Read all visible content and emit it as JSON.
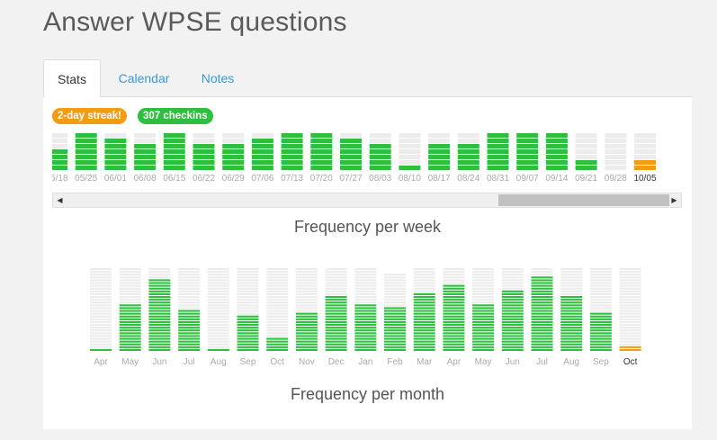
{
  "title": "Answer WPSE questions",
  "tabs": [
    {
      "label": "Stats",
      "active": true
    },
    {
      "label": "Calendar",
      "active": false
    },
    {
      "label": "Notes",
      "active": false
    }
  ],
  "badges": {
    "streak": "2-day streak!",
    "checkins": "307 checkins"
  },
  "colors": {
    "green": "#2fbf3e",
    "orange": "#f39c12",
    "empty": "#ececec",
    "link": "#3a9ad9"
  },
  "scrollbar": {
    "left_icon": "◀",
    "right_icon": "▶"
  },
  "captions": {
    "week": "Frequency per week",
    "month": "Frequency per month"
  },
  "chart_data": [
    {
      "type": "bar",
      "title": "Frequency per week",
      "categories": [
        "05/18",
        "05/25",
        "06/01",
        "06/08",
        "06/15",
        "06/22",
        "06/29",
        "07/06",
        "07/13",
        "07/20",
        "07/27",
        "08/03",
        "08/10",
        "08/17",
        "08/24",
        "08/31",
        "09/07",
        "09/14",
        "09/21",
        "09/28",
        "10/05"
      ],
      "values": [
        4,
        7,
        6,
        5,
        7,
        5,
        5,
        6,
        7,
        7,
        6,
        5,
        1,
        5,
        5,
        7,
        7,
        7,
        2,
        0,
        0
      ],
      "current_value": 2,
      "max": 7,
      "highlight_label": "10/05"
    },
    {
      "type": "bar",
      "title": "Frequency per month",
      "categories": [
        "Apr",
        "May",
        "Jun",
        "Jul",
        "Aug",
        "Sep",
        "Oct",
        "Nov",
        "Dec",
        "Jan",
        "Feb",
        "Mar",
        "Apr",
        "May",
        "Jun",
        "Jul",
        "Aug",
        "Sep",
        "Oct"
      ],
      "values": [
        1,
        17,
        26,
        15,
        1,
        13,
        5,
        14,
        20,
        17,
        16,
        21,
        24,
        17,
        22,
        27,
        20,
        14,
        2
      ],
      "totals": [
        31,
        31,
        30,
        31,
        31,
        30,
        31,
        30,
        31,
        31,
        28,
        31,
        30,
        31,
        30,
        31,
        31,
        30,
        31
      ],
      "current_index": 18,
      "highlight_label": "Oct"
    }
  ]
}
